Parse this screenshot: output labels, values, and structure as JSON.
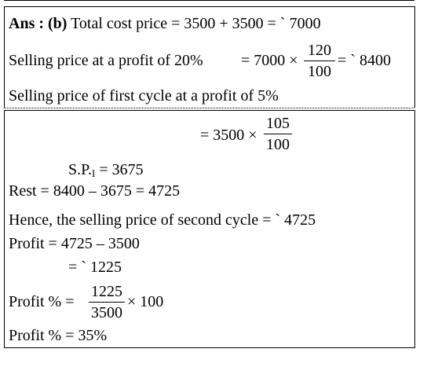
{
  "ans_label": "Ans : (b)",
  "line1_text": "Total cost price = 3500 + 3500 = ` 7000",
  "line2_prefix": "Selling price at a profit of 20%",
  "line2_expr": "= 7000 ×",
  "line2_num": "120",
  "line2_den": "100",
  "line2_result": "= ` 8400",
  "line3_text": "Selling price of first cycle at a profit of 5%",
  "line4_expr": "= 3500 ×",
  "line4_num": "105",
  "line4_den": "100",
  "sp_label": "S.P.",
  "sp_sub": "I",
  "sp_value": "= 3675",
  "rest_text": "Rest = 8400 – 3675 = 4725",
  "hence_text": "Hence, the selling price of second cycle = ` 4725",
  "profit1_text": "Profit = 4725 – 3500",
  "profit2_text": "= ` 1225",
  "profit_pct_label": "Profit % =",
  "profit_pct_num": "1225",
  "profit_pct_den": "3500",
  "profit_pct_tail": "× 100",
  "final_text": "Profit % = 35%"
}
